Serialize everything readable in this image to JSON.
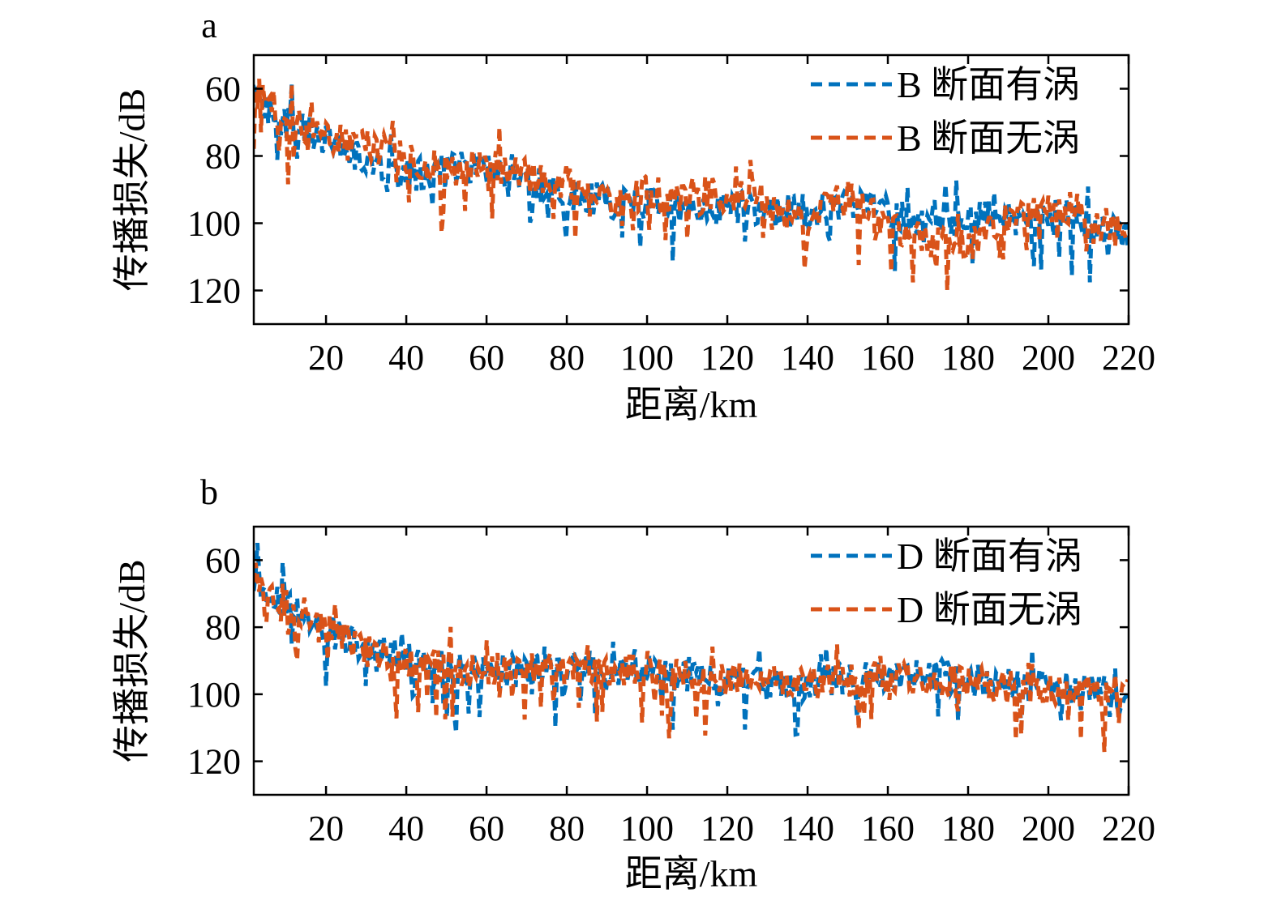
{
  "chart_data": [
    {
      "panel_label": "a",
      "type": "line",
      "xlabel": "距离/km",
      "ylabel": "传播损失/dB",
      "xlim": [
        2,
        220
      ],
      "ylim": [
        50,
        130
      ],
      "y_inverted": true,
      "xticks": [
        20,
        40,
        60,
        80,
        100,
        120,
        140,
        160,
        180,
        200,
        220
      ],
      "yticks": [
        60,
        80,
        100,
        120
      ],
      "grid": false,
      "legend_position": "top-right",
      "x": [
        2,
        5,
        10,
        15,
        20,
        25,
        30,
        35,
        40,
        45,
        50,
        55,
        60,
        65,
        70,
        75,
        80,
        85,
        90,
        95,
        100,
        105,
        110,
        115,
        120,
        125,
        130,
        135,
        140,
        145,
        150,
        155,
        160,
        165,
        170,
        175,
        180,
        185,
        190,
        195,
        200,
        205,
        210,
        215,
        220
      ],
      "series": [
        {
          "name": "B 断面有涡",
          "color": "#0072BD",
          "style": "dashed",
          "values": [
            60,
            66,
            70,
            72,
            75,
            78,
            82,
            84,
            86,
            85,
            84,
            83,
            84,
            86,
            88,
            89,
            90,
            92,
            94,
            95,
            94,
            96,
            97,
            96,
            95,
            96,
            97,
            96,
            98,
            95,
            93,
            95,
            97,
            98,
            99,
            100,
            99,
            98,
            99,
            98,
            97,
            98,
            100,
            101,
            104
          ]
        },
        {
          "name": "B 断面无涡",
          "color": "#D95319",
          "style": "dashed",
          "values": [
            60,
            64,
            68,
            72,
            73,
            76,
            77,
            78,
            80,
            83,
            83,
            82,
            82,
            84,
            86,
            88,
            88,
            90,
            92,
            94,
            90,
            92,
            93,
            91,
            93,
            90,
            94,
            96,
            100,
            95,
            91,
            96,
            100,
            103,
            106,
            106,
            106,
            102,
            98,
            96,
            92,
            97,
            99,
            101,
            104
          ]
        }
      ]
    },
    {
      "panel_label": "b",
      "type": "line",
      "xlabel": "距离/km",
      "ylabel": "传播损失/dB",
      "xlim": [
        2,
        220
      ],
      "ylim": [
        50,
        130
      ],
      "y_inverted": true,
      "xticks": [
        20,
        40,
        60,
        80,
        100,
        120,
        140,
        160,
        180,
        200,
        220
      ],
      "yticks": [
        60,
        80,
        100,
        120
      ],
      "grid": false,
      "legend_position": "top-right",
      "x": [
        2,
        5,
        10,
        15,
        20,
        25,
        30,
        35,
        40,
        45,
        50,
        55,
        60,
        65,
        70,
        75,
        80,
        85,
        90,
        95,
        100,
        105,
        110,
        115,
        120,
        125,
        130,
        135,
        140,
        145,
        150,
        155,
        160,
        165,
        170,
        175,
        180,
        185,
        190,
        195,
        200,
        205,
        210,
        215,
        220
      ],
      "series": [
        {
          "name": "D 断面有涡",
          "color": "#0072BD",
          "style": "dashed",
          "values": [
            64,
            70,
            72,
            76,
            80,
            83,
            86,
            88,
            89,
            91,
            92,
            92,
            92,
            93,
            93,
            92,
            92,
            91,
            92,
            93,
            93,
            94,
            95,
            95,
            96,
            96,
            97,
            97,
            97,
            96,
            95,
            95,
            94,
            94,
            94,
            95,
            96,
            96,
            96,
            97,
            98,
            98,
            99,
            99,
            98
          ]
        },
        {
          "name": "D 断面无涡",
          "color": "#D95319",
          "style": "dashed",
          "values": [
            64,
            70,
            72,
            76,
            80,
            84,
            87,
            89,
            90,
            91,
            92,
            93,
            93,
            92,
            92,
            93,
            93,
            93,
            94,
            93,
            92,
            94,
            95,
            95,
            95,
            96,
            96,
            97,
            97,
            96,
            96,
            95,
            95,
            95,
            96,
            96,
            97,
            97,
            98,
            98,
            99,
            99,
            98,
            98,
            97
          ]
        }
      ]
    }
  ]
}
